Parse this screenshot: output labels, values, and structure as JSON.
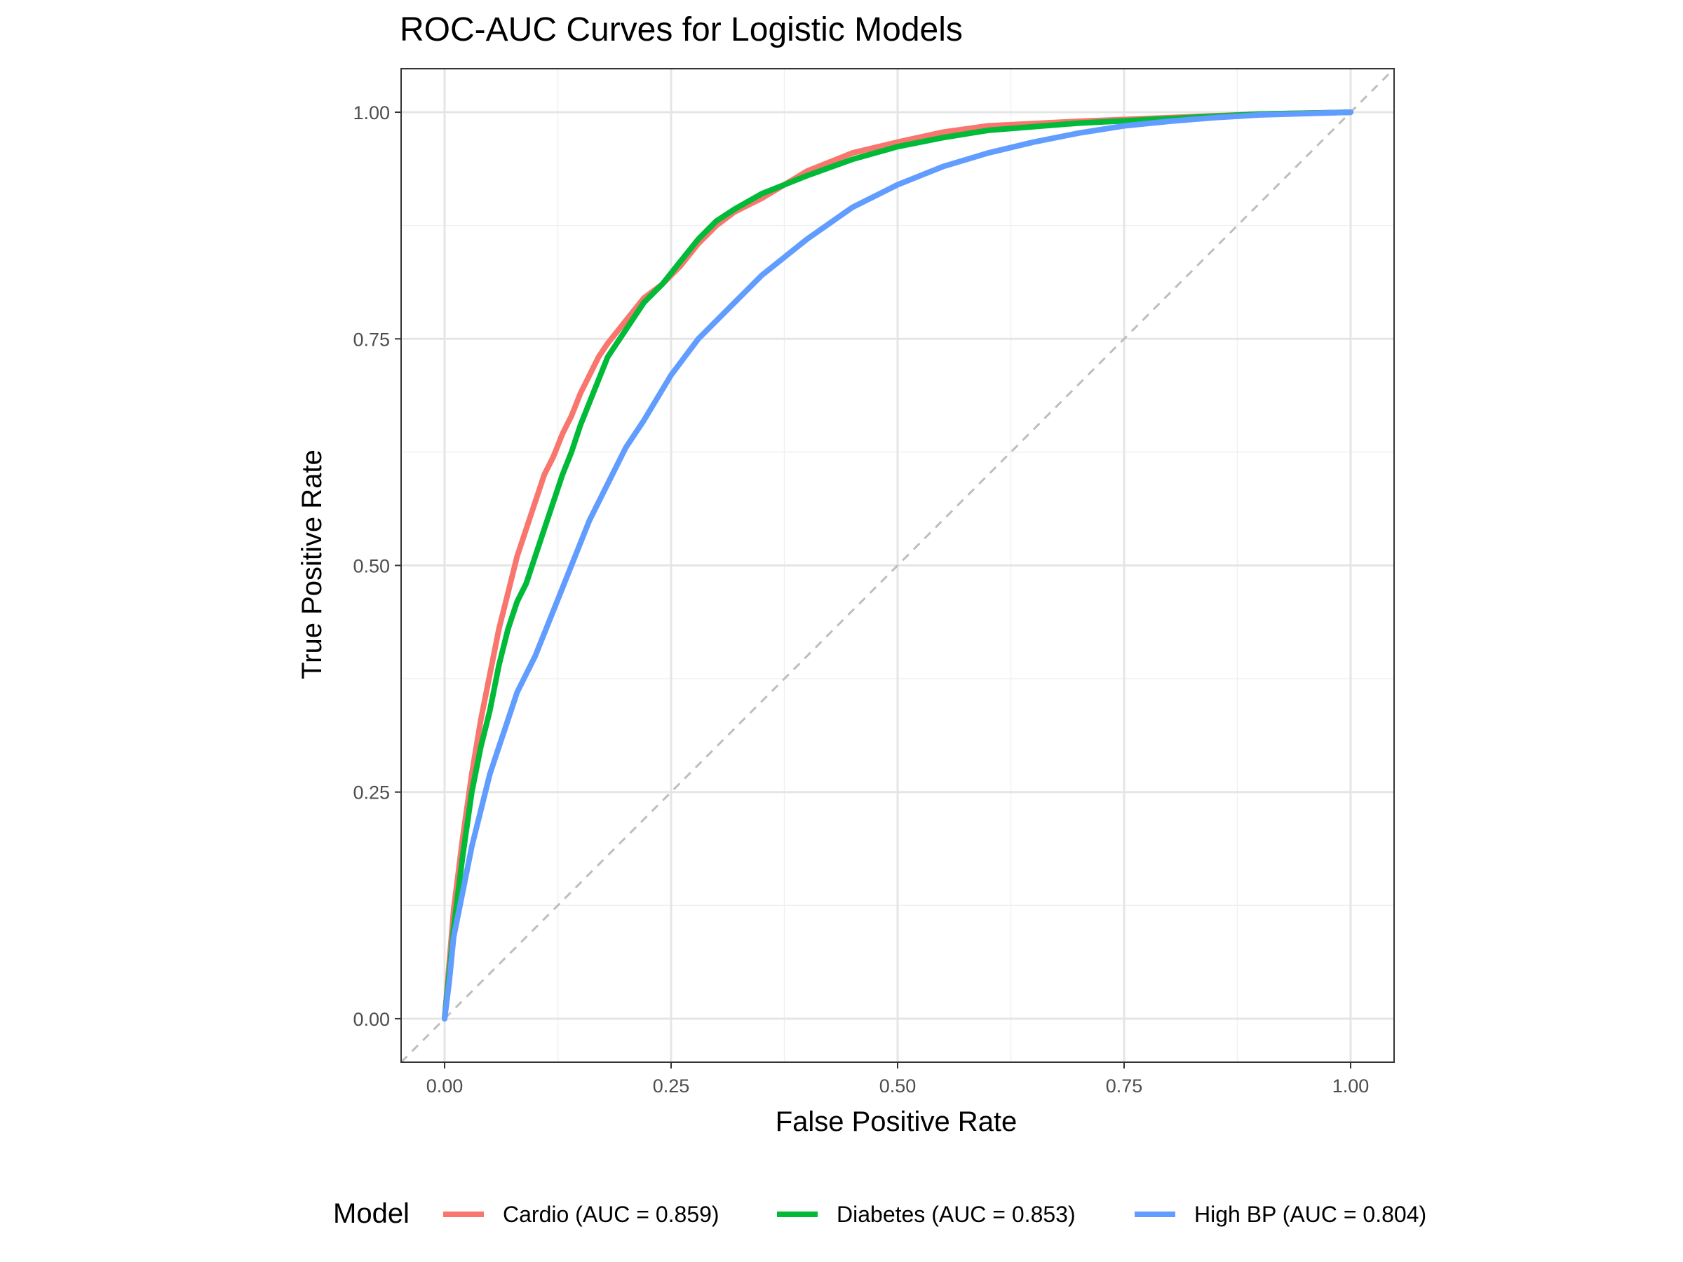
{
  "chart_data": {
    "type": "line",
    "title": "ROC-AUC Curves for Logistic Models",
    "xlabel": "False Positive Rate",
    "ylabel": "True Positive Rate",
    "xlim": [
      0,
      1
    ],
    "ylim": [
      0,
      1
    ],
    "x_ticks": [
      "0.00",
      "0.25",
      "0.50",
      "0.75",
      "1.00"
    ],
    "y_ticks": [
      "0.00",
      "0.25",
      "0.50",
      "0.75",
      "1.00"
    ],
    "grid": true,
    "legend_title": "Model",
    "legend_position": "bottom",
    "reference_line": {
      "style": "dashed",
      "color": "#bebebe",
      "from": [
        0,
        0
      ],
      "to": [
        1,
        1
      ]
    },
    "series": [
      {
        "name": "Cardio (AUC = 0.859)",
        "color": "#F8766D",
        "x": [
          0,
          0.005,
          0.01,
          0.02,
          0.03,
          0.04,
          0.05,
          0.06,
          0.07,
          0.08,
          0.09,
          0.1,
          0.11,
          0.12,
          0.13,
          0.14,
          0.15,
          0.16,
          0.17,
          0.18,
          0.2,
          0.22,
          0.24,
          0.26,
          0.28,
          0.3,
          0.32,
          0.35,
          0.4,
          0.45,
          0.5,
          0.55,
          0.6,
          0.7,
          0.8,
          0.9,
          1.0
        ],
        "y": [
          0,
          0.06,
          0.12,
          0.2,
          0.27,
          0.33,
          0.38,
          0.43,
          0.47,
          0.51,
          0.54,
          0.57,
          0.6,
          0.62,
          0.645,
          0.665,
          0.69,
          0.71,
          0.73,
          0.745,
          0.77,
          0.795,
          0.81,
          0.83,
          0.855,
          0.875,
          0.89,
          0.905,
          0.935,
          0.955,
          0.967,
          0.978,
          0.985,
          0.99,
          0.994,
          0.998,
          1.0
        ]
      },
      {
        "name": "Diabetes (AUC = 0.853)",
        "color": "#00BA38",
        "x": [
          0,
          0.005,
          0.01,
          0.02,
          0.03,
          0.04,
          0.05,
          0.06,
          0.07,
          0.08,
          0.09,
          0.1,
          0.11,
          0.12,
          0.13,
          0.14,
          0.15,
          0.16,
          0.17,
          0.18,
          0.2,
          0.22,
          0.24,
          0.26,
          0.28,
          0.3,
          0.32,
          0.35,
          0.4,
          0.45,
          0.5,
          0.55,
          0.6,
          0.7,
          0.8,
          0.9,
          1.0
        ],
        "y": [
          0,
          0.05,
          0.1,
          0.18,
          0.25,
          0.3,
          0.34,
          0.39,
          0.43,
          0.46,
          0.48,
          0.51,
          0.54,
          0.57,
          0.6,
          0.625,
          0.655,
          0.68,
          0.705,
          0.73,
          0.76,
          0.79,
          0.81,
          0.835,
          0.86,
          0.88,
          0.893,
          0.91,
          0.93,
          0.948,
          0.962,
          0.972,
          0.98,
          0.988,
          0.993,
          0.998,
          1.0
        ]
      },
      {
        "name": "High BP (AUC = 0.804)",
        "color": "#619CFF",
        "x": [
          0,
          0.005,
          0.01,
          0.02,
          0.03,
          0.04,
          0.05,
          0.06,
          0.07,
          0.08,
          0.09,
          0.1,
          0.12,
          0.14,
          0.16,
          0.18,
          0.2,
          0.22,
          0.25,
          0.28,
          0.31,
          0.35,
          0.4,
          0.45,
          0.5,
          0.55,
          0.6,
          0.65,
          0.7,
          0.75,
          0.8,
          0.85,
          0.9,
          1.0
        ],
        "y": [
          0,
          0.04,
          0.09,
          0.14,
          0.19,
          0.23,
          0.27,
          0.3,
          0.33,
          0.36,
          0.38,
          0.4,
          0.45,
          0.5,
          0.55,
          0.59,
          0.63,
          0.66,
          0.71,
          0.75,
          0.78,
          0.82,
          0.86,
          0.895,
          0.92,
          0.94,
          0.955,
          0.967,
          0.977,
          0.985,
          0.99,
          0.994,
          0.997,
          1.0
        ]
      }
    ]
  }
}
